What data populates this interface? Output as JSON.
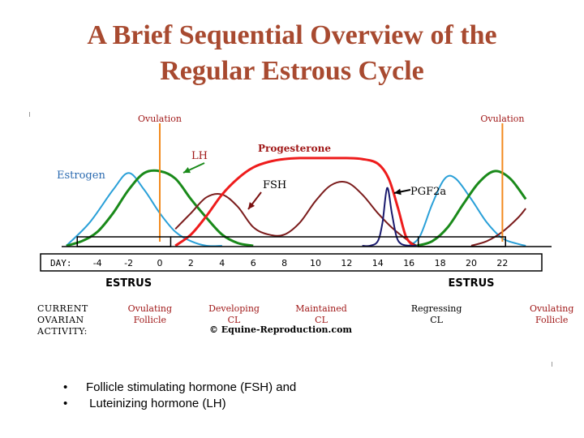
{
  "slide": {
    "title_line1": "A Brief Sequential Overview of the",
    "title_line2": "Regular Estrous Cycle",
    "bullets": [
      "Follicle stimulating hormone (FSH) and",
      " Luteinizing hormone (LH)"
    ]
  },
  "colors": {
    "title": "#a84a30",
    "estrogen": "#2aa0d8",
    "lh": "#1a8a1a",
    "progesterone": "#ee1c1c",
    "fsh": "#7b1c1c",
    "pgf2a": "#1a1a6e",
    "ovulation": "#f28a1e",
    "label_red": "#a01818",
    "label_blue": "#2a6ab0"
  },
  "chart_data": {
    "type": "line",
    "x_unit": "day",
    "x_ticks": [
      -4,
      -2,
      0,
      2,
      4,
      6,
      8,
      10,
      12,
      14,
      16,
      18,
      20,
      22
    ],
    "day_label": "DAY:",
    "estrus_labels": [
      {
        "text": "ESTRUS",
        "day": -2
      },
      {
        "text": "ESTRUS",
        "day": 20
      }
    ],
    "ovulation_events": [
      {
        "label": "Ovulation",
        "day": 0
      },
      {
        "label": "Ovulation",
        "day": 22
      }
    ],
    "hormone_labels": {
      "estrogen": "Estrogen",
      "lh": "LH",
      "progesterone": "Progesterone",
      "fsh": "FSH",
      "pgf2a": "PGF2a"
    },
    "series": [
      {
        "name": "Estrogen",
        "key": "estrogen",
        "x": [
          -6,
          -4.5,
          -3,
          -2,
          -1,
          0,
          1,
          2,
          3,
          4
        ],
        "y": [
          0.0,
          0.25,
          0.6,
          0.78,
          0.6,
          0.35,
          0.15,
          0.05,
          0.0,
          0.0
        ]
      },
      {
        "name": "Estrogen",
        "key": "estrogen",
        "x": [
          16,
          16.7,
          17.5,
          18.3,
          19,
          20,
          21,
          22,
          23,
          23.5
        ],
        "y": [
          0.0,
          0.1,
          0.45,
          0.72,
          0.72,
          0.5,
          0.25,
          0.08,
          0.02,
          0.0
        ]
      },
      {
        "name": "LH",
        "key": "lh",
        "x": [
          -6,
          -5,
          -4,
          -3,
          -2,
          -1,
          0,
          1,
          2,
          3,
          4,
          5,
          6
        ],
        "y": [
          0.0,
          0.05,
          0.15,
          0.35,
          0.6,
          0.78,
          0.8,
          0.72,
          0.5,
          0.3,
          0.12,
          0.03,
          0.0
        ]
      },
      {
        "name": "LH",
        "key": "lh",
        "x": [
          16.5,
          17.5,
          18.5,
          19.5,
          20.5,
          21.5,
          22.5,
          23.5
        ],
        "y": [
          0.0,
          0.05,
          0.2,
          0.45,
          0.68,
          0.8,
          0.72,
          0.5
        ]
      },
      {
        "name": "Progesterone",
        "key": "progesterone",
        "x": [
          1,
          2,
          3,
          4,
          5,
          6,
          7,
          8,
          9,
          10,
          11,
          12,
          13,
          14,
          14.7,
          15.3,
          15.8,
          16.3
        ],
        "y": [
          0.0,
          0.12,
          0.32,
          0.55,
          0.72,
          0.84,
          0.9,
          0.93,
          0.94,
          0.94,
          0.94,
          0.94,
          0.93,
          0.88,
          0.72,
          0.4,
          0.1,
          0.0
        ]
      },
      {
        "name": "FSH",
        "key": "fsh",
        "x": [
          1,
          2,
          3,
          4,
          5,
          6,
          7,
          8,
          9,
          10,
          11,
          12,
          13,
          14,
          15,
          16,
          16.5
        ],
        "y": [
          0.18,
          0.35,
          0.52,
          0.55,
          0.42,
          0.2,
          0.12,
          0.12,
          0.25,
          0.48,
          0.65,
          0.68,
          0.55,
          0.35,
          0.18,
          0.05,
          0.0
        ]
      },
      {
        "name": "FSH",
        "key": "fsh",
        "x": [
          20,
          21,
          22,
          23,
          23.5
        ],
        "y": [
          0.0,
          0.05,
          0.15,
          0.3,
          0.4
        ]
      },
      {
        "name": "PGF2a",
        "key": "pgf2a",
        "x": [
          13,
          13.5,
          14,
          14.3,
          14.6,
          14.9,
          15.2,
          15.5,
          16,
          16.5
        ],
        "y": [
          0.0,
          0.0,
          0.05,
          0.25,
          0.62,
          0.35,
          0.1,
          0.02,
          0.0,
          0.0
        ]
      }
    ],
    "activity": {
      "label_lines": [
        "CURRENT",
        "OVARIAN",
        "ACTIVITY:"
      ],
      "stages": [
        {
          "lines": [
            "Ovulating",
            "Follicle"
          ],
          "day": 0.2
        },
        {
          "lines": [
            "Developing",
            "CL"
          ],
          "day": 5.6
        },
        {
          "lines": [
            "Maintained",
            "CL"
          ],
          "day": 11.2
        },
        {
          "lines": [
            "Regressing",
            "CL"
          ],
          "day": 18.6
        },
        {
          "lines": [
            "Ovulating",
            "Follicle"
          ],
          "day": 26.0
        }
      ],
      "copyright": "© Equine-Reproduction.com"
    }
  }
}
